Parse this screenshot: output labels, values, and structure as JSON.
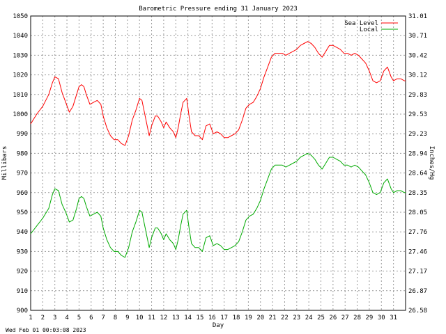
{
  "chart_data": {
    "type": "line",
    "title": "Barometric Pressure ending 31 January 2023",
    "xlabel": "Day",
    "ylabel_left": "Millibars",
    "ylabel_right": "Inches/Hg",
    "footer": "Wed Feb 01 00:03:08 2023",
    "xlim": [
      1,
      32
    ],
    "ylim": [
      900,
      1050
    ],
    "x_ticks": [
      "1",
      "2",
      "3",
      "4",
      "5",
      "6",
      "7",
      "8",
      "9",
      "10",
      "11",
      "12",
      "13",
      "14",
      "15",
      "16",
      "17",
      "18",
      "19",
      "20",
      "21",
      "22",
      "23",
      "24",
      "25",
      "26",
      "27",
      "28",
      "29",
      "30",
      "31"
    ],
    "y_ticks_left": [
      "900",
      "910",
      "920",
      "930",
      "940",
      "950",
      "960",
      "970",
      "980",
      "990",
      "1000",
      "1010",
      "1020",
      "1030",
      "1040",
      "1050"
    ],
    "y_ticks_right": [
      "26.58",
      "26.87",
      "27.17",
      "27.46",
      "27.76",
      "28.05",
      "28.35",
      "28.64",
      "28.94",
      "29.23",
      "29.53",
      "29.83",
      "30.12",
      "30.42",
      "30.71",
      "31.01"
    ],
    "grid": true,
    "legend_position": "top-right",
    "colors": {
      "sea_level": "#ff0000",
      "local": "#00aa00"
    },
    "series": [
      {
        "name": "Sea Level",
        "x": [
          1,
          1.5,
          2,
          2.5,
          2.8,
          3,
          3.3,
          3.6,
          3.9,
          4.2,
          4.5,
          4.8,
          5,
          5.2,
          5.4,
          5.6,
          5.9,
          6.2,
          6.5,
          6.8,
          7,
          7.3,
          7.6,
          7.9,
          8.2,
          8.5,
          8.8,
          9.1,
          9.4,
          9.7,
          10,
          10.2,
          10.5,
          10.8,
          11,
          11.3,
          11.5,
          11.8,
          12,
          12.2,
          12.5,
          12.8,
          13,
          13.2,
          13.4,
          13.6,
          13.9,
          14.1,
          14.3,
          14.6,
          14.9,
          15.2,
          15.5,
          15.8,
          16.1,
          16.4,
          16.7,
          17,
          17.3,
          17.6,
          17.9,
          18.2,
          18.5,
          18.8,
          19.1,
          19.4,
          19.7,
          20,
          20.3,
          20.6,
          20.9,
          21.2,
          21.5,
          21.8,
          22.1,
          22.4,
          22.7,
          23,
          23.3,
          23.6,
          23.9,
          24.2,
          24.5,
          24.8,
          25.1,
          25.4,
          25.7,
          26,
          26.3,
          26.6,
          26.9,
          27.2,
          27.5,
          27.8,
          28.1,
          28.4,
          28.7,
          29,
          29.3,
          29.6,
          29.9,
          30.2,
          30.5,
          30.8,
          31,
          31.3,
          31.6,
          31.9,
          32
        ],
        "values": [
          995,
          1000,
          1004,
          1010,
          1016,
          1019,
          1018,
          1011,
          1006,
          1001,
          1004,
          1010,
          1014,
          1015,
          1014,
          1010,
          1005,
          1006,
          1007,
          1005,
          999,
          993,
          989,
          987,
          987,
          985,
          984,
          989,
          997,
          1002,
          1008,
          1007,
          998,
          989,
          994,
          999,
          999,
          996,
          993,
          996,
          993,
          991,
          988,
          993,
          1000,
          1006,
          1008,
          999,
          991,
          989,
          989,
          987,
          994,
          995,
          990,
          991,
          990,
          988,
          988,
          989,
          990,
          992,
          997,
          1003,
          1005,
          1006,
          1009,
          1013,
          1019,
          1024,
          1029,
          1031,
          1031,
          1031,
          1030,
          1031,
          1032,
          1033,
          1035,
          1036,
          1037,
          1036,
          1034,
          1031,
          1029,
          1032,
          1035,
          1035,
          1034,
          1033,
          1031,
          1031,
          1030,
          1031,
          1030,
          1028,
          1026,
          1022,
          1017,
          1016,
          1017,
          1022,
          1024,
          1019,
          1017,
          1018,
          1018,
          1017,
          1017
        ]
      },
      {
        "name": "Local",
        "x": [
          1,
          1.5,
          2,
          2.5,
          2.8,
          3,
          3.3,
          3.6,
          3.9,
          4.2,
          4.5,
          4.8,
          5,
          5.2,
          5.4,
          5.6,
          5.9,
          6.2,
          6.5,
          6.8,
          7,
          7.3,
          7.6,
          7.9,
          8.2,
          8.5,
          8.8,
          9.1,
          9.4,
          9.7,
          10,
          10.2,
          10.5,
          10.8,
          11,
          11.3,
          11.5,
          11.8,
          12,
          12.2,
          12.5,
          12.8,
          13,
          13.2,
          13.4,
          13.6,
          13.9,
          14.1,
          14.3,
          14.6,
          14.9,
          15.2,
          15.5,
          15.8,
          16.1,
          16.4,
          16.7,
          17,
          17.3,
          17.6,
          17.9,
          18.2,
          18.5,
          18.8,
          19.1,
          19.4,
          19.7,
          20,
          20.3,
          20.6,
          20.9,
          21.2,
          21.5,
          21.8,
          22.1,
          22.4,
          22.7,
          23,
          23.3,
          23.6,
          23.9,
          24.2,
          24.5,
          24.8,
          25.1,
          25.4,
          25.7,
          26,
          26.3,
          26.6,
          26.9,
          27.2,
          27.5,
          27.8,
          28.1,
          28.4,
          28.7,
          29,
          29.3,
          29.6,
          29.9,
          30.2,
          30.5,
          30.8,
          31,
          31.3,
          31.6,
          31.9,
          32
        ],
        "values": [
          939,
          943,
          947,
          952,
          959,
          962,
          961,
          954,
          950,
          945,
          946,
          952,
          957,
          958,
          957,
          953,
          948,
          949,
          950,
          948,
          942,
          936,
          932,
          930,
          930,
          928,
          927,
          932,
          940,
          945,
          951,
          950,
          941,
          932,
          937,
          942,
          942,
          939,
          936,
          939,
          936,
          934,
          931,
          936,
          943,
          949,
          951,
          942,
          934,
          932,
          932,
          930,
          937,
          938,
          933,
          934,
          933,
          931,
          931,
          932,
          933,
          935,
          940,
          946,
          948,
          949,
          952,
          956,
          962,
          967,
          972,
          974,
          974,
          974,
          973,
          974,
          975,
          976,
          978,
          979,
          980,
          979,
          977,
          974,
          972,
          975,
          978,
          978,
          977,
          976,
          974,
          974,
          973,
          974,
          973,
          971,
          969,
          965,
          960,
          959,
          960,
          965,
          967,
          962,
          960,
          961,
          961,
          960,
          960
        ]
      }
    ]
  }
}
